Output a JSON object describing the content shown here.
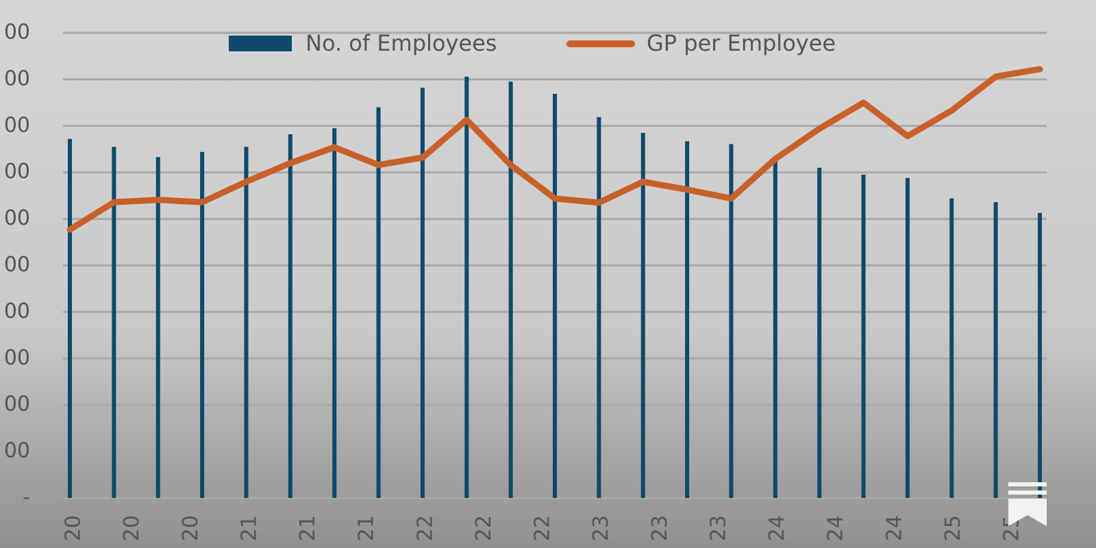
{
  "chart_data": {
    "type": "bar-line",
    "categories": [
      null,
      null,
      null,
      null,
      null,
      null,
      null,
      null,
      null,
      null,
      null,
      null,
      null,
      null,
      null,
      null,
      null,
      null,
      null,
      null,
      null,
      null,
      null
    ],
    "x_labels": [
      "20",
      "20",
      "20",
      "21",
      "21",
      "21",
      "22",
      "22",
      "22",
      "23",
      "23",
      "23",
      "24",
      "24",
      "24",
      "25",
      "25"
    ],
    "series": [
      {
        "name": "No. of Employees",
        "type": "bar",
        "color": "#0d4a6b",
        "values": [
          772,
          755,
          733,
          744,
          755,
          782,
          795,
          840,
          882,
          906,
          895,
          869,
          819,
          785,
          767,
          761,
          732,
          710,
          695,
          688,
          644,
          636,
          613
        ]
      },
      {
        "name": "GP per Employee",
        "type": "line",
        "color": "#c8602a",
        "values": [
          577,
          636,
          641,
          636,
          680,
          720,
          754,
          716,
          732,
          813,
          716,
          644,
          635,
          680,
          663,
          644,
          729,
          794,
          850,
          778,
          833,
          906,
          922
        ]
      }
    ],
    "ylim": [
      0,
      1000
    ],
    "yticks": [
      {
        "value": 0,
        "label": "-"
      },
      {
        "value": 100,
        "label": "00"
      },
      {
        "value": 200,
        "label": "00"
      },
      {
        "value": 300,
        "label": "00"
      },
      {
        "value": 400,
        "label": "00"
      },
      {
        "value": 500,
        "label": "00"
      },
      {
        "value": 600,
        "label": "00"
      },
      {
        "value": 700,
        "label": "00"
      },
      {
        "value": 800,
        "label": "00"
      },
      {
        "value": 900,
        "label": "00"
      },
      {
        "value": 1000,
        "label": "00"
      }
    ],
    "grid": true,
    "legend": "top"
  }
}
